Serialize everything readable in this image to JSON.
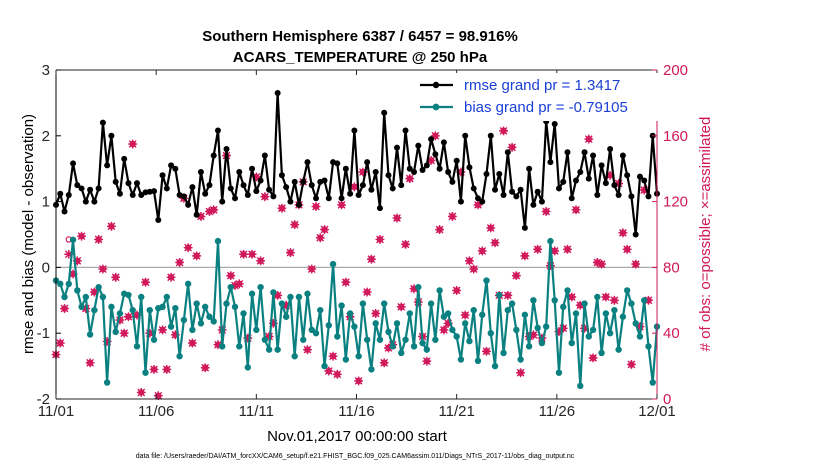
{
  "chart_data": {
    "type": "line",
    "title": [
      "Southern Hemisphere 6387 / 6457 = 98.916%",
      "ACARS_TEMPERATURE @ 250 hPa"
    ],
    "xlabel": "Nov.01,2017 00:00:00 start",
    "ylabel_left": "rmse and bias (model - observation)",
    "ylabel_right": "# of obs: o=possible; ×=assimilated",
    "xlim": [
      0,
      30
    ],
    "ylim_left": [
      -2,
      3
    ],
    "ylim_right": [
      0,
      200
    ],
    "x_ticks": [
      0,
      5,
      10,
      15,
      20,
      25,
      30
    ],
    "x_tick_labels": [
      "11/01",
      "11/06",
      "11/11",
      "11/16",
      "11/21",
      "11/26",
      "12/01"
    ],
    "y_ticks_left": [
      -2,
      -1,
      0,
      1,
      2,
      3
    ],
    "y_ticks_right": [
      0,
      40,
      80,
      120,
      160,
      200
    ],
    "zero_line": 0,
    "footnote": "data file: /Users/raeder/DAI/ATM_forcXX/CAM6_setup/f.e21.FHIST_BGC.f09_025.CAM6assim.011/Diags_NTrS_2017-11/obs_diag_output.nc",
    "colors": {
      "rmse": "#000000",
      "bias": "#0b8080",
      "obs": "#d0185a",
      "axis_left": "#000000",
      "axis_right": "#d0185a",
      "legend_text": "#1a3fd6",
      "zero_line": "#aaaaaa"
    },
    "series": [
      {
        "name": "rmse grand pr = 1.3417",
        "marker": "*",
        "values": [
          0.95,
          1.12,
          0.85,
          1.1,
          1.58,
          1.25,
          1.2,
          1.0,
          1.18,
          1.0,
          1.2,
          2.2,
          1.55,
          2.0,
          1.3,
          1.12,
          1.65,
          1.28,
          1.1,
          1.28,
          1.1,
          1.14,
          1.15,
          1.16,
          0.72,
          1.4,
          1.2,
          1.55,
          1.5,
          1.1,
          1.08,
          0.95,
          1.22,
          0.8,
          1.45,
          1.12,
          1.25,
          1.7,
          2.08,
          1.0,
          1.8,
          1.2,
          1.05,
          1.45,
          1.25,
          1.1,
          1.5,
          1.16,
          1.32,
          1.7,
          1.18,
          1.08,
          2.65,
          1.4,
          1.22,
          1.0,
          1.3,
          0.95,
          1.3,
          1.6,
          1.25,
          1.05,
          1.3,
          1.32,
          1.05,
          1.6,
          1.58,
          1.05,
          1.5,
          1.12,
          2.08,
          1.1,
          1.25,
          1.6,
          1.18,
          1.45,
          0.9,
          2.35,
          1.4,
          1.2,
          1.82,
          1.25,
          2.08,
          1.5,
          1.45,
          1.85,
          1.48,
          1.55,
          1.95,
          1.72,
          1.5,
          1.9,
          1.45,
          1.3,
          1.62,
          1.0,
          2.0,
          1.52,
          1.2,
          1.05,
          1.0,
          1.42,
          2.0,
          1.18,
          1.42,
          1.1,
          1.75,
          1.15,
          1.08,
          1.18,
          0.6,
          1.5,
          0.95,
          1.15,
          1.0,
          2.22,
          1.6,
          2.18,
          1.2,
          1.3,
          1.75,
          1.05,
          1.32,
          1.45,
          1.75,
          1.35,
          1.7,
          1.1,
          1.55,
          1.28,
          1.8,
          1.25,
          1.1,
          1.7,
          1.4,
          1.08,
          0.5,
          1.38,
          1.32,
          1.08,
          2.0,
          1.12
        ]
      },
      {
        "name": "bias grand pr = -0.79105",
        "marker": "o",
        "values": [
          -0.2,
          -0.25,
          -0.45,
          -0.25,
          0.42,
          -0.35,
          -0.6,
          -0.45,
          -1.02,
          -0.65,
          -0.3,
          -0.45,
          -1.75,
          -0.6,
          -0.98,
          -0.7,
          -0.4,
          -0.42,
          -0.65,
          -1.2,
          -0.45,
          -1.6,
          -0.65,
          -1.1,
          -0.62,
          -0.6,
          -0.45,
          -0.9,
          -0.62,
          -1.35,
          -0.8,
          -0.25,
          -0.95,
          -0.55,
          -0.85,
          -0.6,
          -0.75,
          -0.82,
          0.4,
          -1.2,
          -0.55,
          -0.3,
          -0.6,
          -1.2,
          -0.7,
          -1.52,
          -0.4,
          -0.95,
          -0.3,
          -1.1,
          -1.25,
          -0.38,
          -1.25,
          -0.55,
          -0.75,
          -0.45,
          -1.35,
          -0.45,
          -1.1,
          -0.4,
          -0.95,
          -1.0,
          -0.65,
          -1.5,
          -0.88,
          0.05,
          -1.05,
          -0.58,
          -1.4,
          -0.7,
          -0.9,
          -1.35,
          -0.55,
          -1.1,
          -1.55,
          -0.85,
          -1.1,
          -0.55,
          -0.98,
          -1.2,
          -0.85,
          -1.3,
          -1.1,
          -0.7,
          -1.2,
          -0.3,
          -1.15,
          -1.25,
          -0.55,
          -1.1,
          -0.35,
          -0.75,
          -0.7,
          -0.95,
          -1.05,
          -1.4,
          -0.85,
          -1.12,
          -0.65,
          -1.42,
          -0.72,
          -0.2,
          -1.0,
          -1.5,
          -0.42,
          -1.3,
          -0.65,
          -0.55,
          -0.95,
          -1.4,
          -0.72,
          -1.2,
          -0.5,
          -0.92,
          -1.15,
          -0.9,
          0.4,
          -0.5,
          -1.6,
          -0.6,
          -0.35,
          -1.15,
          -0.7,
          -1.8,
          -0.55,
          -1.05,
          -0.95,
          -0.45,
          -1.3,
          -0.7,
          -1.0,
          -0.65,
          -1.25,
          -0.75,
          -0.35,
          -0.55,
          -0.85,
          -1.05,
          -0.5,
          -1.2,
          -1.75,
          -0.9
        ]
      },
      {
        "name": "obs possible",
        "marker": "o",
        "values": [
          27,
          34,
          55,
          97,
          76,
          84,
          99,
          55,
          22,
          65,
          97,
          79,
          35,
          105,
          74,
          48,
          40,
          50,
          155,
          51,
          4,
          71,
          40,
          18,
          2,
          42,
          18,
          74,
          39,
          83,
          122,
          92,
          34,
          87,
          111,
          19,
          114,
          115,
          33,
          42,
          148,
          75,
          69,
          70,
          88,
          37,
          88,
          135,
          84,
          123,
          38,
          46,
          63,
          116,
          57,
          89,
          106,
          118,
          132,
          30,
          79,
          117,
          98,
          103,
          17,
          26,
          15,
          118,
          71,
          50,
          129,
          11,
          138,
          65,
          85,
          52,
          97,
          22,
          31,
          33,
          110,
          56,
          94,
          134,
          67,
          59,
          38,
          23,
          145,
          160,
          103,
          42,
          46,
          111,
          66,
          138,
          51,
          84,
          79,
          118,
          90,
          29,
          104,
          95,
          63,
          163,
          63,
          153,
          75,
          16,
          87,
          38,
          39,
          91,
          37,
          114,
          81,
          90,
          41,
          43,
          91,
          62,
          115,
          57,
          43,
          158,
          25,
          83,
          82,
          62,
          136,
          60,
          131,
          101,
          91,
          21,
          82,
          44,
          127,
          60
        ]
      },
      {
        "name": "obs assimilated",
        "marker": "x",
        "values": [
          27,
          34,
          55,
          88,
          76,
          84,
          99,
          55,
          22,
          65,
          97,
          79,
          35,
          105,
          74,
          48,
          40,
          50,
          155,
          51,
          4,
          71,
          40,
          18,
          2,
          42,
          18,
          74,
          39,
          83,
          122,
          92,
          34,
          87,
          111,
          19,
          114,
          115,
          33,
          42,
          148,
          75,
          69,
          70,
          88,
          37,
          88,
          135,
          84,
          123,
          38,
          46,
          63,
          116,
          57,
          89,
          106,
          118,
          132,
          30,
          79,
          117,
          98,
          103,
          17,
          26,
          15,
          118,
          71,
          50,
          129,
          11,
          138,
          65,
          85,
          52,
          97,
          22,
          31,
          33,
          110,
          56,
          94,
          134,
          67,
          59,
          38,
          23,
          145,
          160,
          103,
          42,
          46,
          111,
          66,
          138,
          51,
          84,
          79,
          118,
          90,
          29,
          104,
          95,
          63,
          163,
          63,
          153,
          75,
          16,
          87,
          38,
          39,
          91,
          37,
          114,
          81,
          90,
          41,
          43,
          91,
          62,
          115,
          57,
          43,
          158,
          25,
          83,
          82,
          62,
          136,
          60,
          131,
          101,
          91,
          21,
          82,
          44,
          127,
          60
        ]
      }
    ]
  }
}
